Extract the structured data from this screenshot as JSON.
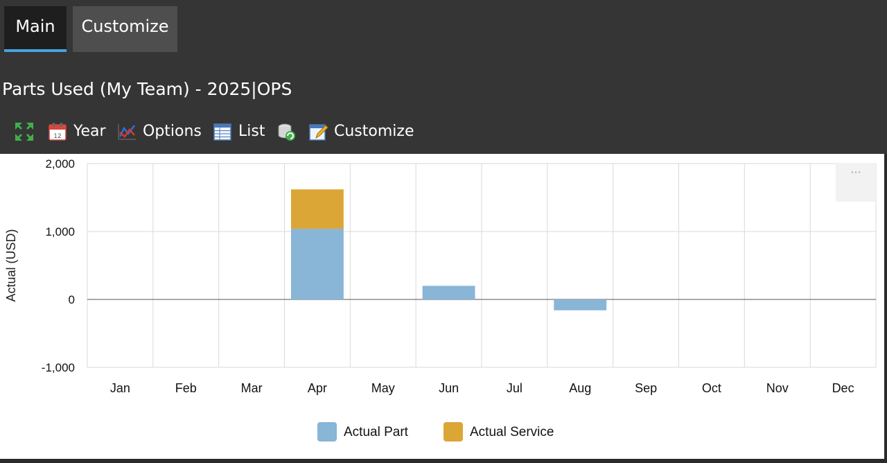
{
  "tabs": [
    {
      "label": "Main",
      "active": true
    },
    {
      "label": "Customize",
      "active": false
    }
  ],
  "title": "Parts Used (My Team) - 2025|OPS",
  "toolbar": {
    "expand_icon": "expand-arrows-icon",
    "year_label": "Year",
    "options_label": "Options",
    "list_label": "List",
    "refresh_icon": "refresh-icon",
    "customize_label": "Customize"
  },
  "chart_menu": {
    "label": "···"
  },
  "colors": {
    "actual_part": "#89b5d6",
    "actual_service": "#dba636",
    "tab_accent": "#4aa3df"
  },
  "chart_data": {
    "type": "bar",
    "stacked": true,
    "categories": [
      "Jan",
      "Feb",
      "Mar",
      "Apr",
      "May",
      "Jun",
      "Jul",
      "Aug",
      "Sep",
      "Oct",
      "Nov",
      "Dec"
    ],
    "series": [
      {
        "name": "Actual Part",
        "color": "#89b5d6",
        "values": [
          0,
          0,
          0,
          1040,
          0,
          200,
          0,
          -160,
          0,
          0,
          0,
          0
        ]
      },
      {
        "name": "Actual Service",
        "color": "#dba636",
        "values": [
          0,
          0,
          0,
          580,
          0,
          0,
          0,
          0,
          0,
          0,
          0,
          0
        ]
      }
    ],
    "ylabel": "Actual (USD)",
    "xlabel": "",
    "ylim": [
      -1000,
      2000
    ],
    "yticks": [
      -1000,
      0,
      1000,
      2000
    ],
    "ytick_labels": [
      "-1,000",
      "0",
      "1,000",
      "2,000"
    ],
    "grid": true,
    "legend": "bottom-center"
  }
}
